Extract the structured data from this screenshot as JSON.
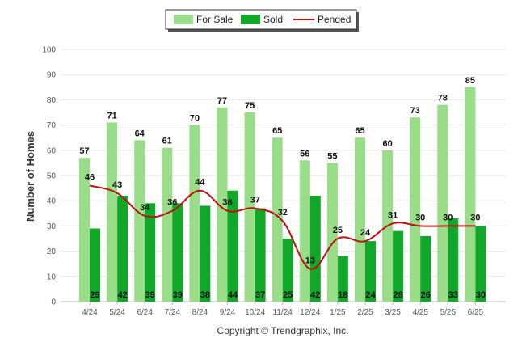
{
  "chart_data": {
    "type": "bar",
    "ylabel": "Number of Homes",
    "ylim": [
      0,
      100
    ],
    "yticks": [
      0,
      10,
      20,
      30,
      40,
      50,
      60,
      70,
      80,
      90,
      100
    ],
    "grid": true,
    "legend_position": "top-center",
    "categories": [
      "4/24",
      "5/24",
      "6/24",
      "7/24",
      "8/24",
      "9/24",
      "10/24",
      "11/24",
      "12/24",
      "1/25",
      "2/25",
      "3/25",
      "4/25",
      "5/25",
      "6/25"
    ],
    "series": [
      {
        "name": "For Sale",
        "kind": "bar",
        "color": "#99dd88",
        "values": [
          57,
          71,
          64,
          61,
          70,
          77,
          75,
          65,
          56,
          55,
          65,
          60,
          73,
          78,
          85
        ]
      },
      {
        "name": "Sold",
        "kind": "bar",
        "color": "#11a82a",
        "values": [
          29,
          42,
          39,
          39,
          38,
          44,
          37,
          25,
          42,
          18,
          24,
          28,
          26,
          33,
          30
        ]
      },
      {
        "name": "Pended",
        "kind": "line",
        "color": "#bb1111",
        "values": [
          46,
          43,
          34,
          36,
          44,
          36,
          37,
          32,
          13,
          25,
          24,
          31,
          30,
          30,
          30
        ]
      }
    ]
  },
  "legend": {
    "items": [
      {
        "label": "For Sale",
        "color": "#99dd88",
        "shape": "rect"
      },
      {
        "label": "Sold",
        "color": "#11a82a",
        "shape": "rect"
      },
      {
        "label": "Pended",
        "color": "#bb1111",
        "shape": "line"
      }
    ]
  },
  "footer": {
    "copyright": "Copyright © Trendgraphix, Inc."
  }
}
